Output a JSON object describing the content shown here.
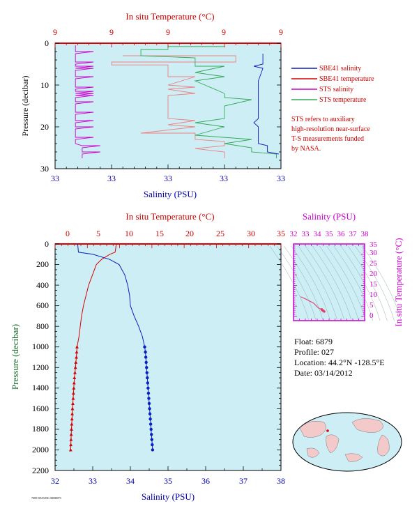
{
  "colors": {
    "plot_bg": "#cdeef5",
    "salinity": "#0a1fbf",
    "temperature": "#d80000",
    "sts_salinity": "#cc00cc",
    "sts_temperature": "#33aa55",
    "pressure_axis": "#1a6b2a"
  },
  "top_chart": {
    "title_top": "In situ Temperature (°C)",
    "top_ticks": [
      "9",
      "9",
      "9",
      "9",
      "9"
    ],
    "xlabel": "Salinity (PSU)",
    "bottom_ticks": [
      "33",
      "33",
      "33",
      "33",
      "33"
    ],
    "ylabel": "Pressure (decibar)",
    "y_ticks": [
      "0",
      "10",
      "20",
      "30"
    ]
  },
  "legend": {
    "items": [
      {
        "label": "SBE41 salinity",
        "color": "#0a1fbf"
      },
      {
        "label": "SBE41 temperature",
        "color": "#d80000"
      },
      {
        "label": "STS salinity",
        "color": "#cc00cc"
      },
      {
        "label": "STS temperature",
        "color": "#33aa55"
      }
    ],
    "note": [
      "STS refers to auxiliary",
      "high-resolution near-surface",
      "T-S measurements funded",
      "by NASA."
    ]
  },
  "bottom_chart": {
    "title_top": "In situ Temperature (°C)",
    "top_ticks": [
      "0",
      "5",
      "10",
      "15",
      "20",
      "25",
      "30",
      "35"
    ],
    "xlabel": "Salinity (PSU)",
    "bottom_ticks": [
      "32",
      "33",
      "34",
      "35",
      "36",
      "37",
      "38"
    ],
    "ylabel": "Pressure (decibar)",
    "y_ticks": [
      "0",
      "200",
      "400",
      "600",
      "800",
      "1000",
      "1200",
      "1400",
      "1600",
      "1800",
      "2000",
      "2200"
    ]
  },
  "ts_inset": {
    "title_top": "Salinity (PSU)",
    "top_ticks": [
      "32",
      "33",
      "34",
      "35",
      "36",
      "37",
      "38"
    ],
    "ylabel": "In situ Temperature (°C)",
    "y_ticks": [
      "0",
      "5",
      "10",
      "15",
      "20",
      "25",
      "30",
      "35"
    ]
  },
  "info": {
    "float": "Float:  6879",
    "profile": "Profile:  027",
    "location": "Location:  44.2°N  -128.5°E",
    "date": "Date:  03/14/2012"
  },
  "footer_tiny": "7009 DATA BG 00000073",
  "chart_data": [
    {
      "type": "line",
      "title": "",
      "xlabel": "Salinity (PSU)",
      "x2label": "In situ Temperature (°C)",
      "ylabel": "Pressure (decibar)",
      "ylim": [
        30,
        0
      ],
      "series": [
        {
          "name": "SBE41 salinity",
          "salinity_fraction": [
            0.89,
            0.89,
            0.88,
            0.88,
            0.9,
            0.92,
            0.93
          ],
          "pressure": [
            2,
            8,
            14,
            20,
            24,
            26,
            28
          ]
        },
        {
          "name": "SBE41 temperature",
          "pressure": [
            0,
            3,
            5,
            12,
            19,
            22,
            27,
            30
          ]
        },
        {
          "name": "STS salinity",
          "pressure": [
            0,
            4,
            8,
            12,
            16,
            20,
            24,
            28
          ]
        },
        {
          "name": "STS temperature",
          "pressure": [
            1,
            2,
            3,
            5,
            8,
            12,
            16,
            20,
            24,
            27
          ]
        }
      ]
    },
    {
      "type": "line",
      "title": "",
      "xlabel": "Salinity (PSU)",
      "xlim": [
        32,
        38
      ],
      "x2label": "In situ Temperature (°C)",
      "x2lim": [
        0,
        35
      ],
      "ylabel": "Pressure (decibar)",
      "ylim": [
        2200,
        0
      ],
      "series": [
        {
          "name": "Salinity",
          "axis": "salinity",
          "pressure": [
            0,
            80,
            100,
            150,
            200,
            300,
            400,
            500,
            600,
            700,
            800,
            900,
            1000,
            1050,
            1100,
            1150,
            1200,
            1250,
            1300,
            1350,
            1400,
            1450,
            1500,
            1550,
            1600,
            1650,
            1700,
            1750,
            1800,
            1850,
            1900,
            1950,
            2000
          ],
          "values": [
            32.6,
            32.62,
            33.0,
            33.45,
            33.7,
            33.85,
            33.93,
            33.98,
            34.0,
            34.1,
            34.22,
            34.32,
            34.38,
            34.4,
            34.41,
            34.42,
            34.43,
            34.44,
            34.45,
            34.46,
            34.47,
            34.48,
            34.49,
            34.5,
            34.51,
            34.52,
            34.53,
            34.54,
            34.55,
            34.56,
            34.57,
            34.58,
            34.59
          ]
        },
        {
          "name": "Temperature",
          "axis": "temperature",
          "pressure": [
            0,
            80,
            100,
            150,
            200,
            300,
            400,
            500,
            600,
            700,
            800,
            900,
            1000,
            1050,
            1100,
            1150,
            1200,
            1250,
            1300,
            1350,
            1400,
            1450,
            1500,
            1550,
            1600,
            1650,
            1700,
            1750,
            1800,
            1850,
            1900,
            1950,
            2000
          ],
          "values": [
            9.5,
            9.3,
            8.5,
            7.2,
            6.4,
            5.8,
            5.2,
            4.8,
            4.4,
            4.1,
            3.9,
            3.7,
            3.4,
            3.35,
            3.3,
            3.22,
            3.15,
            3.08,
            3.0,
            2.95,
            2.9,
            2.85,
            2.8,
            2.75,
            2.7,
            2.66,
            2.62,
            2.58,
            2.54,
            2.5,
            2.47,
            2.44,
            2.41
          ]
        }
      ]
    },
    {
      "type": "line",
      "title": "",
      "xlabel": "Salinity (PSU)",
      "xlim": [
        32,
        38
      ],
      "ylabel": "In situ Temperature (°C)",
      "ylim": [
        -2,
        35
      ],
      "series": [
        {
          "name": "T-S",
          "salinity": [
            32.6,
            33.0,
            33.7,
            33.98,
            34.1,
            34.38,
            34.45,
            34.52,
            34.59
          ],
          "temperature": [
            9.5,
            8.5,
            6.4,
            4.8,
            4.1,
            3.4,
            3.0,
            2.7,
            2.41
          ]
        }
      ]
    }
  ]
}
